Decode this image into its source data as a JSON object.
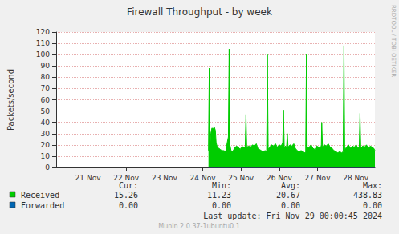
{
  "chart_data": {
    "type": "area",
    "title": "Firewall Throughput - by week",
    "y_label": "Packets/second",
    "side_text": "RRDTOOL / TOBI OETIKER",
    "last_update": "Last update: Fri Nov 29 00:00:45 2024",
    "footer": "Munin 2.0.37-1ubuntu0.1",
    "stats_headers": [
      "Cur:",
      "Min:",
      "Avg:",
      "Max:"
    ],
    "xlim": [
      20.67,
      29.0
    ],
    "xticks": [
      {
        "value": 21.5,
        "label": "21 Nov"
      },
      {
        "value": 22.5,
        "label": "22 Nov"
      },
      {
        "value": 23.5,
        "label": "23 Nov"
      },
      {
        "value": 24.5,
        "label": "24 Nov"
      },
      {
        "value": 25.5,
        "label": "25 Nov"
      },
      {
        "value": 26.5,
        "label": "26 Nov"
      },
      {
        "value": 27.5,
        "label": "27 Nov"
      },
      {
        "value": 28.5,
        "label": "28 Nov"
      }
    ],
    "ylim": [
      0,
      120
    ],
    "yticks": [
      0,
      10,
      20,
      30,
      40,
      50,
      60,
      70,
      80,
      90,
      100,
      110,
      120
    ],
    "grid": true,
    "x": [
      24.65,
      24.67,
      24.69,
      24.71,
      24.74,
      24.77,
      24.8,
      24.83,
      24.85,
      24.88,
      24.92,
      24.96,
      25.0,
      25.05,
      25.1,
      25.14,
      25.17,
      25.19,
      25.21,
      25.24,
      25.28,
      25.33,
      25.38,
      25.43,
      25.48,
      25.53,
      25.58,
      25.61,
      25.63,
      25.65,
      25.7,
      25.75,
      25.8,
      25.85,
      25.9,
      25.94,
      25.98,
      26.03,
      26.08,
      26.13,
      26.17,
      26.19,
      26.21,
      26.25,
      26.3,
      26.35,
      26.4,
      26.45,
      26.5,
      26.55,
      26.59,
      26.61,
      26.63,
      26.67,
      26.69,
      26.71,
      26.73,
      26.78,
      26.83,
      26.88,
      26.92,
      26.97,
      27.02,
      27.07,
      27.12,
      27.17,
      27.19,
      27.21,
      27.23,
      27.28,
      27.33,
      27.38,
      27.43,
      27.48,
      27.53,
      27.58,
      27.6,
      27.61,
      27.63,
      27.68,
      27.73,
      27.78,
      27.83,
      27.88,
      27.93,
      27.98,
      28.03,
      28.08,
      28.13,
      28.17,
      28.19,
      28.21,
      28.26,
      28.31,
      28.36,
      28.41,
      28.46,
      28.51,
      28.56,
      28.59,
      28.61,
      28.63,
      28.68,
      28.73,
      28.78,
      28.83,
      28.88,
      28.93,
      28.97,
      29.0
    ],
    "series": [
      {
        "name": "Received",
        "color": "#00cc00",
        "stats": [
          15.26,
          11.23,
          20.67,
          438.83
        ],
        "stats_labels": [
          "15.26",
          "11.23",
          "20.67",
          "438.83"
        ],
        "values": [
          15,
          88,
          17,
          30,
          35,
          34,
          36,
          33,
          22,
          18,
          17,
          16,
          15,
          15,
          14,
          22,
          27,
          105,
          20,
          15,
          14,
          17,
          19,
          18,
          16,
          19,
          17,
          18,
          47,
          18,
          19,
          18,
          20,
          19,
          21,
          17,
          16,
          15,
          14,
          15,
          14,
          100,
          16,
          18,
          20,
          19,
          21,
          18,
          20,
          19,
          22,
          51,
          18,
          19,
          17,
          30,
          18,
          20,
          19,
          21,
          17,
          15,
          14,
          15,
          14,
          13,
          14,
          100,
          17,
          18,
          20,
          17,
          16,
          19,
          18,
          17,
          20,
          40,
          18,
          20,
          19,
          21,
          18,
          17,
          15,
          14,
          13,
          14,
          13,
          14,
          108,
          16,
          18,
          20,
          17,
          19,
          18,
          20,
          17,
          18,
          48,
          17,
          19,
          18,
          20,
          17,
          19,
          18,
          17,
          15
        ]
      },
      {
        "name": "Forwarded",
        "color": "#0066b3",
        "stats": [
          0,
          0,
          0,
          0
        ],
        "stats_labels": [
          "0.00",
          "0.00",
          "0.00",
          "0.00"
        ],
        "values": [
          0,
          0,
          0,
          0,
          0,
          0,
          0,
          0,
          0,
          0,
          0,
          0,
          0,
          0,
          0,
          0,
          0,
          0,
          0,
          0,
          0,
          0,
          0,
          0,
          0,
          0,
          0,
          0,
          0,
          0,
          0,
          0,
          0,
          0,
          0,
          0,
          0,
          0,
          0,
          0,
          0,
          0,
          0,
          0,
          0,
          0,
          0,
          0,
          0,
          0,
          0,
          0,
          0,
          0,
          0,
          0,
          0,
          0,
          0,
          0,
          0,
          0,
          0,
          0,
          0,
          0,
          0,
          0,
          0,
          0,
          0,
          0,
          0,
          0,
          0,
          0,
          0,
          0,
          0,
          0,
          0,
          0,
          0,
          0,
          0,
          0,
          0,
          0,
          0,
          0,
          0,
          0,
          0,
          0,
          0,
          0,
          0,
          0,
          0,
          0,
          0,
          0,
          0,
          0,
          0,
          0,
          0,
          0,
          0,
          0
        ]
      }
    ]
  }
}
